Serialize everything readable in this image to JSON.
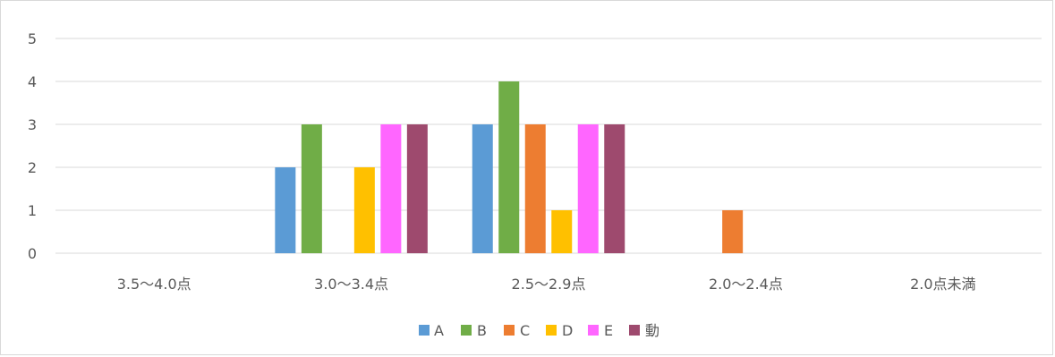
{
  "chart_data": {
    "type": "bar",
    "categories": [
      "3.5～4.0点",
      "3.0～3.4点",
      "2.5～2.9点",
      "2.0～2.4点",
      "2.0点未満"
    ],
    "series": [
      {
        "name": "A",
        "color": "#5b9bd5",
        "values": [
          0,
          2,
          3,
          0,
          0
        ]
      },
      {
        "name": "B",
        "color": "#70ad47",
        "values": [
          0,
          3,
          4,
          0,
          0
        ]
      },
      {
        "name": "C",
        "color": "#ed7d31",
        "values": [
          0,
          0,
          3,
          1,
          0
        ]
      },
      {
        "name": "D",
        "color": "#ffc000",
        "values": [
          0,
          2,
          1,
          0,
          0
        ]
      },
      {
        "name": "E",
        "color": "#ff66ff",
        "values": [
          0,
          3,
          3,
          0,
          0
        ]
      },
      {
        "name": "動",
        "color": "#9e4a6e",
        "values": [
          0,
          3,
          3,
          0,
          0
        ]
      }
    ],
    "yticks": [
      "0",
      "1",
      "2",
      "3",
      "4",
      "5"
    ],
    "ylim": [
      0,
      5
    ],
    "grid": true,
    "legend_position": "bottom",
    "title": "",
    "xlabel": "",
    "ylabel": ""
  }
}
